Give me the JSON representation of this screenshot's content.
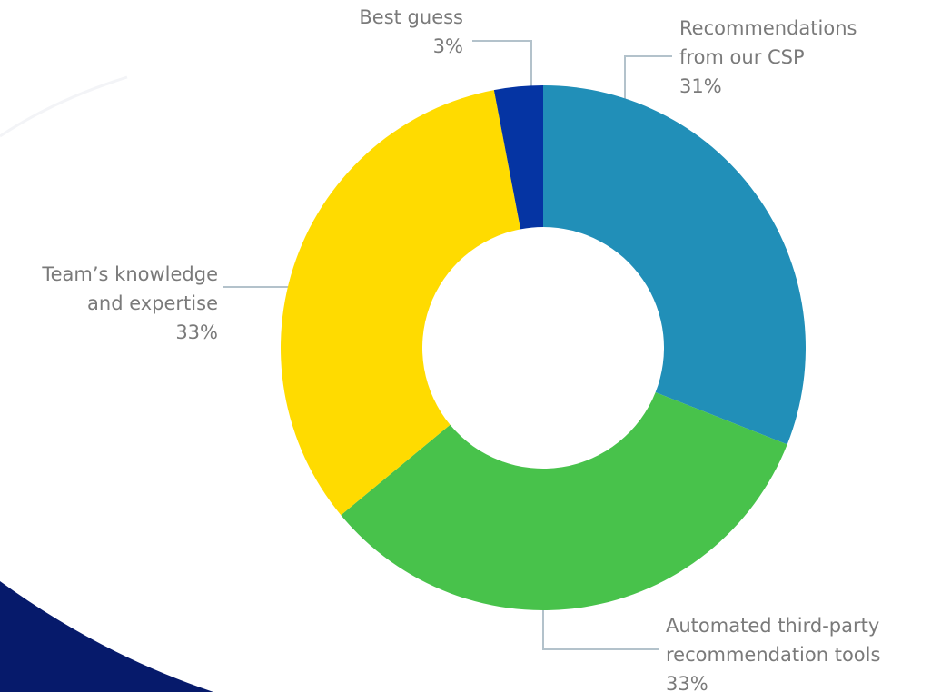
{
  "chart_data": {
    "type": "donut",
    "categories": [
      [
        "Recommendations",
        "from our CSP"
      ],
      [
        "Automated third-party",
        "recommendation tools"
      ],
      [
        "Team’s knowledge",
        "and expertise"
      ],
      [
        "Best guess"
      ]
    ],
    "values": [
      31,
      33,
      33,
      3
    ],
    "value_labels": [
      "31%",
      "33%",
      "33%",
      "3%"
    ],
    "colors": [
      "#218fb8",
      "#48c24b",
      "#ffdb00",
      "#0534a3"
    ]
  }
}
